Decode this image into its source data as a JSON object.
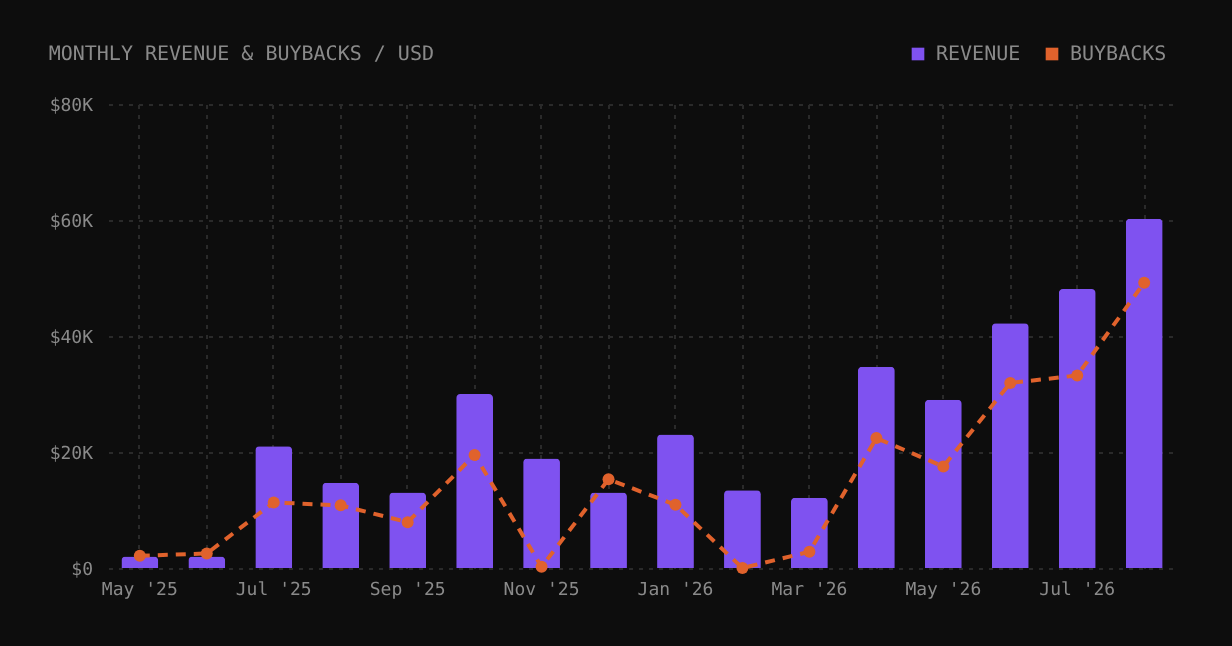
{
  "chart_data": {
    "type": "bar",
    "title": "MONTHLY REVENUE & BUYBACKS / USD",
    "categories": [
      "May '25",
      null,
      "Jul '25",
      null,
      "Sep '25",
      null,
      "Nov '25",
      null,
      "Jan '26",
      null,
      "Mar '26",
      null,
      "May '26",
      null,
      "Jul '26",
      null
    ],
    "series": [
      {
        "name": "REVENUE",
        "color": "#7f52f0",
        "values": [
          2.0,
          2.0,
          21.0,
          14.7,
          13.0,
          30.0,
          18.9,
          13.0,
          23.0,
          13.4,
          12.1,
          34.7,
          29.0,
          42.2,
          48.1,
          60.2
        ]
      },
      {
        "name": "BUYBACKS",
        "type": "line",
        "color": "#e0622c",
        "values": [
          2.1,
          2.5,
          11.3,
          10.8,
          7.9,
          19.5,
          0.2,
          15.3,
          10.9,
          0.0,
          2.8,
          22.4,
          17.5,
          31.9,
          33.2,
          49.2
        ]
      }
    ],
    "ylim": [
      0,
      80
    ],
    "yticks": [
      {
        "value": 0,
        "label": "$0"
      },
      {
        "value": 20,
        "label": "$20K"
      },
      {
        "value": 40,
        "label": "$40K"
      },
      {
        "value": 60,
        "label": "$60K"
      },
      {
        "value": 80,
        "label": "$80K"
      }
    ],
    "grid": true,
    "legend": "top right",
    "marker": "circle",
    "line_style": "dashed"
  }
}
